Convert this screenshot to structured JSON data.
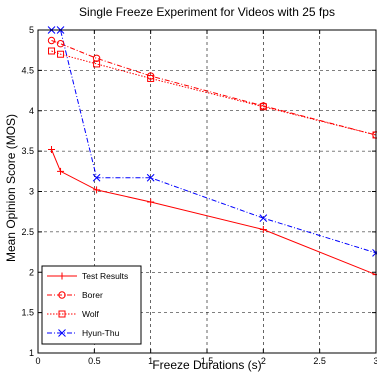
{
  "chart_data": {
    "type": "line",
    "title": "Single Freeze Experiment for Videos with 25 fps",
    "xlabel": "Freeze Durations (s)",
    "ylabel": "Mean Opinion Score (MOS)",
    "xlim": [
      0,
      3
    ],
    "ylim": [
      1,
      5
    ],
    "xticks": [
      0,
      0.5,
      1,
      1.5,
      2,
      2.5,
      3
    ],
    "xtick_labels": [
      "0",
      "0.5",
      "1",
      "1.5",
      "2",
      "2.5",
      "3"
    ],
    "yticks": [
      1,
      1.5,
      2,
      2.5,
      3,
      3.5,
      4,
      4.5,
      5
    ],
    "ytick_labels": [
      "1",
      "1.5",
      "2",
      "2.5",
      "3",
      "3.5",
      "4",
      "4.5",
      "5"
    ],
    "grid": true,
    "legend_position": "bottom-left",
    "series": [
      {
        "name": "Test Results",
        "color": "#ff0000",
        "dash": "solid",
        "marker": "plus",
        "x": [
          0.12,
          0.2,
          0.52,
          1,
          2,
          3
        ],
        "y": [
          3.52,
          3.25,
          3.02,
          2.87,
          2.53,
          1.97
        ]
      },
      {
        "name": "Borer",
        "color": "#ff0000",
        "dash": "dashdot",
        "marker": "circle",
        "x": [
          0.12,
          0.2,
          0.52,
          1,
          2,
          3
        ],
        "y": [
          4.87,
          4.83,
          4.65,
          4.43,
          4.06,
          3.7
        ]
      },
      {
        "name": "Wolf",
        "color": "#ff0000",
        "dash": "dotted",
        "marker": "square",
        "x": [
          0.12,
          0.2,
          0.52,
          1,
          2,
          3
        ],
        "y": [
          4.74,
          4.7,
          4.58,
          4.4,
          4.05,
          3.7
        ]
      },
      {
        "name": "Hyun-Thu",
        "color": "#0000ff",
        "dash": "dashdot",
        "marker": "x",
        "x": [
          0.12,
          0.2,
          0.52,
          1,
          2,
          3
        ],
        "y": [
          5.0,
          5.0,
          3.17,
          3.17,
          2.67,
          2.24
        ]
      }
    ]
  }
}
